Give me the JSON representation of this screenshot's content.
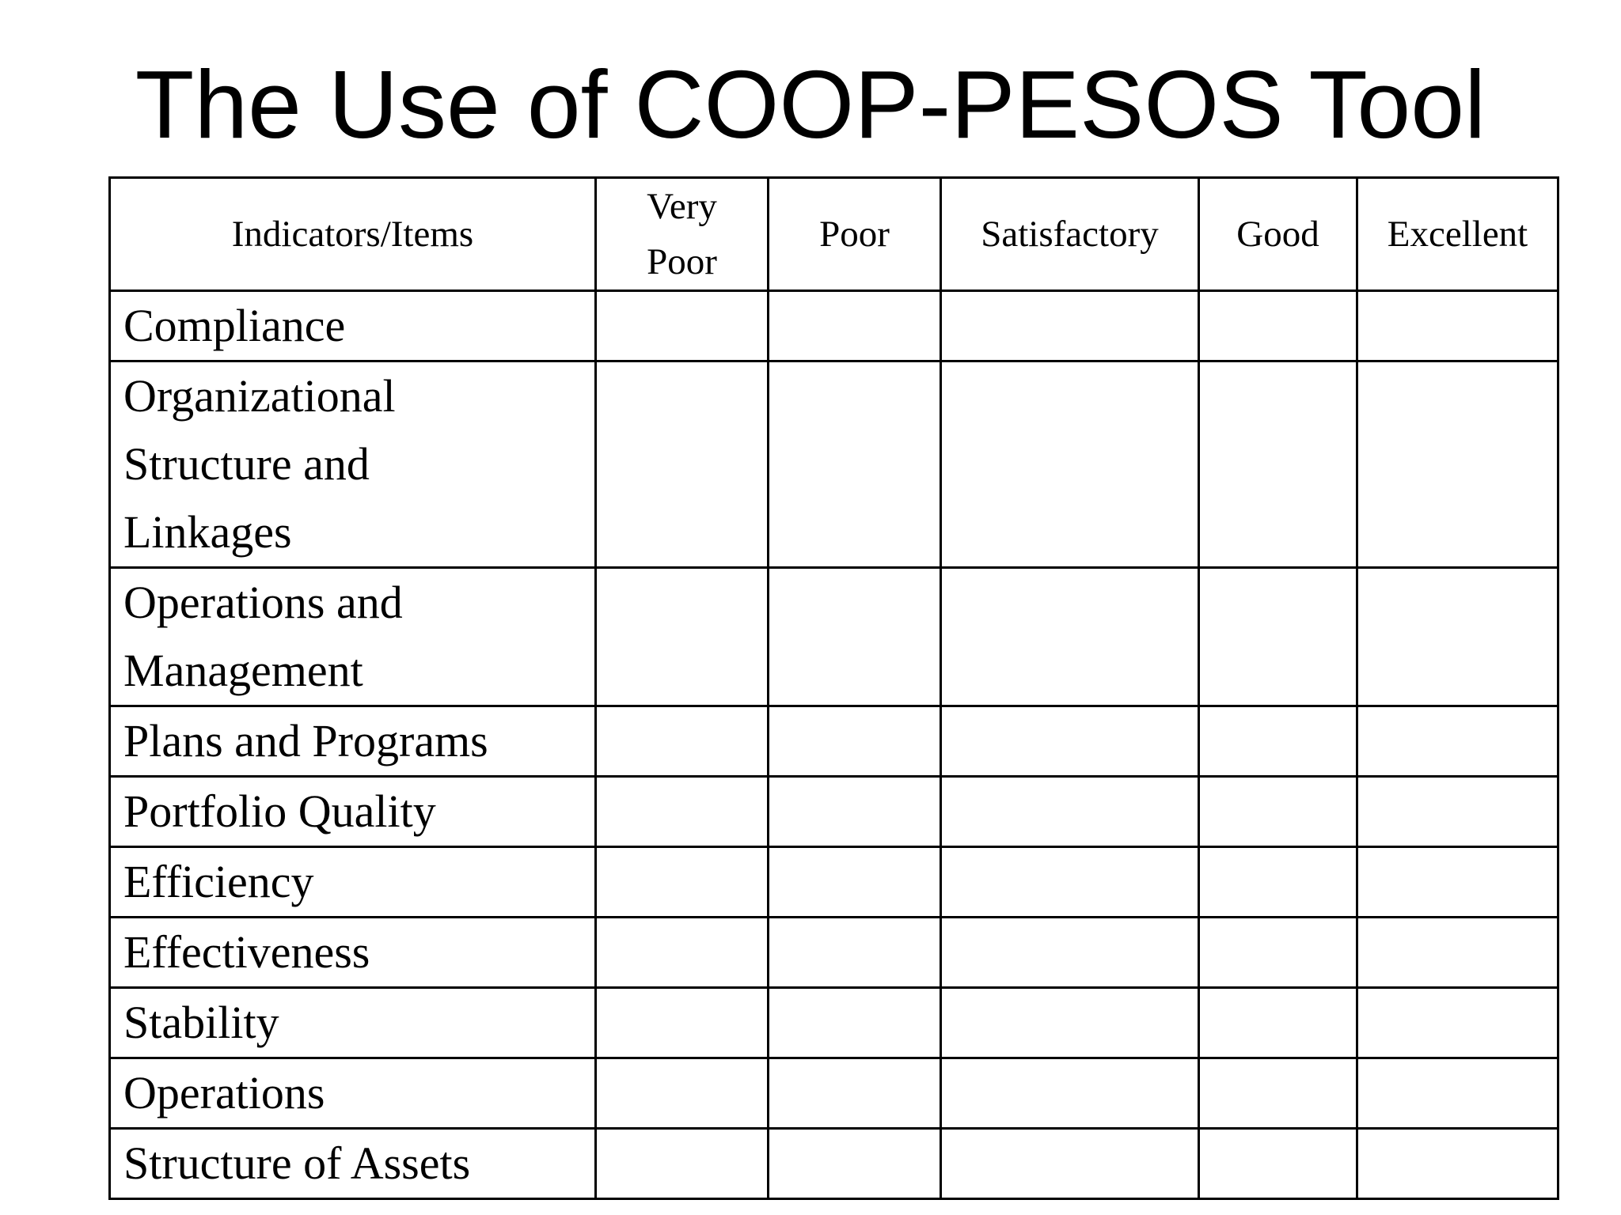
{
  "title": "The Use of COOP-PESOS Tool",
  "table": {
    "headers": {
      "indicator": "Indicators/Items",
      "ratings": [
        "Very Poor",
        "Poor",
        "Satisfactory",
        "Good",
        "Excellent"
      ]
    },
    "rows": [
      {
        "indicator": "Compliance"
      },
      {
        "indicator": "Organizational\nStructure  and\nLinkages"
      },
      {
        "indicator": "Operations and\nManagement"
      },
      {
        "indicator": "Plans and Programs"
      },
      {
        "indicator": "Portfolio Quality"
      },
      {
        "indicator": "Efficiency"
      },
      {
        "indicator": "Effectiveness"
      },
      {
        "indicator": "Stability"
      },
      {
        "indicator": "Operations"
      },
      {
        "indicator": "Structure of Assets"
      }
    ]
  }
}
